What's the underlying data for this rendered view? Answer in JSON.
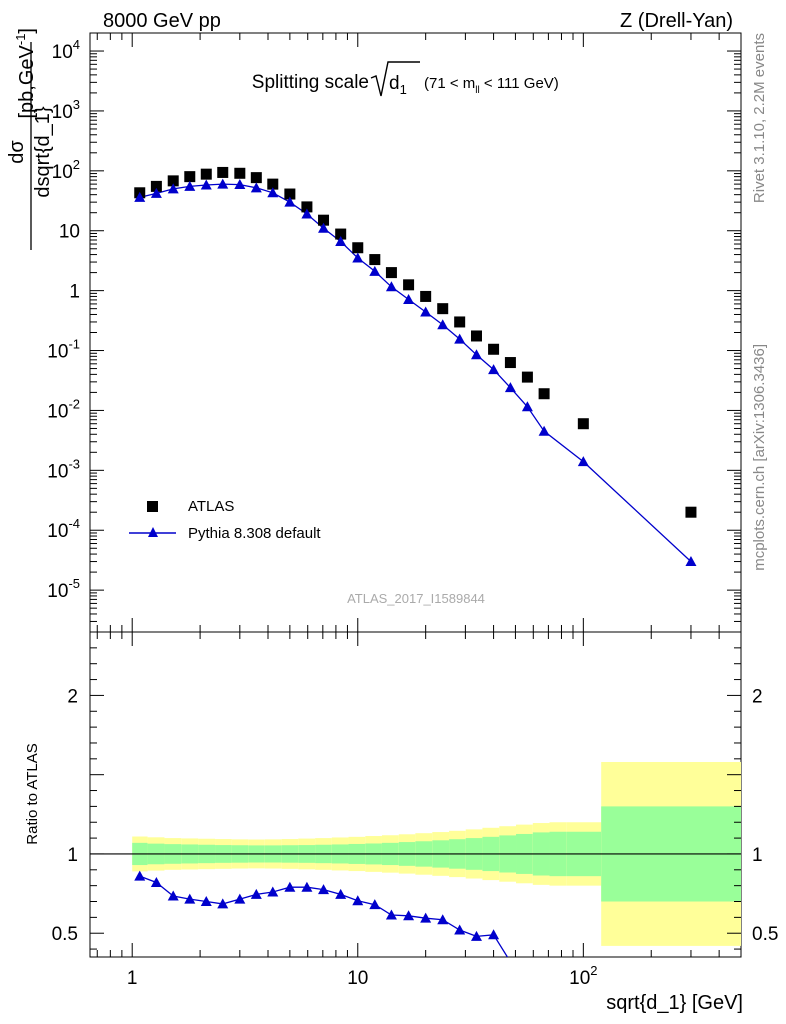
{
  "header": {
    "left": "8000 GeV pp",
    "right": "Z (Drell-Yan)"
  },
  "side_labels": {
    "rivet": "Rivet 3.1.10,  2.2M events",
    "mcplots": "mcplots.cern.ch [arXiv:1306.3436]"
  },
  "watermark": "ATLAS_2017_I1589844",
  "title": {
    "main": "Splitting scale",
    "sub": "d",
    "sub_index": "1",
    "range_a": "(71 < m",
    "range_sub": "ll",
    "range_b": " < 111 GeV)"
  },
  "colors": {
    "atlas": "#000000",
    "pythia": "#0000cc",
    "band_inner": "#99ff99",
    "band_outer": "#ffff99"
  },
  "chart_data": [
    {
      "type": "scatter",
      "panel": "main",
      "xscale": "log",
      "yscale": "log",
      "xlim": [
        0.65,
        500
      ],
      "ylim": [
        2e-06,
        20000
      ],
      "ylabel_num": "dσ",
      "ylabel_den": "dsqrt{d_1}",
      "ylabel_unit": "[pb,GeV",
      "ylabel_unit_exp": "-1",
      "ylabel_unit_close": "]",
      "yticks": [
        {
          "v": 1e-05,
          "m": "10",
          "e": "-5"
        },
        {
          "v": 0.0001,
          "m": "10",
          "e": "-4"
        },
        {
          "v": 0.001,
          "m": "10",
          "e": "-3"
        },
        {
          "v": 0.01,
          "m": "10",
          "e": "-2"
        },
        {
          "v": 0.1,
          "m": "10",
          "e": "-1"
        },
        {
          "v": 1,
          "m": "1",
          "e": ""
        },
        {
          "v": 10,
          "m": "10",
          "e": ""
        },
        {
          "v": 100,
          "m": "10",
          "e": "2"
        },
        {
          "v": 1000,
          "m": "10",
          "e": "3"
        },
        {
          "v": 10000,
          "m": "10",
          "e": "4"
        }
      ],
      "legend_position": "bottom-left",
      "series": [
        {
          "name": "ATLAS",
          "marker": "square",
          "x": [
            1.08,
            1.28,
            1.52,
            1.8,
            2.13,
            2.52,
            3.0,
            3.55,
            4.2,
            5.0,
            5.95,
            7.05,
            8.4,
            10.0,
            11.9,
            14.1,
            16.8,
            20.0,
            23.8,
            28.3,
            33.6,
            40.0,
            47.5,
            56.5,
            67.0,
            100.0,
            300.0
          ],
          "y": [
            43,
            55,
            68,
            80,
            88,
            94,
            91,
            77,
            60,
            41,
            25,
            15,
            8.8,
            5.2,
            3.3,
            2.0,
            1.25,
            0.8,
            0.5,
            0.3,
            0.175,
            0.105,
            0.063,
            0.036,
            0.019,
            0.006,
            0.0002
          ]
        },
        {
          "name": "Pythia 8.308 default",
          "marker": "triangle",
          "x": [
            1.08,
            1.28,
            1.52,
            1.8,
            2.13,
            2.52,
            3.0,
            3.55,
            4.2,
            5.0,
            5.95,
            7.05,
            8.4,
            10.0,
            11.9,
            14.1,
            16.8,
            20.0,
            23.8,
            28.3,
            33.6,
            40.0,
            47.5,
            56.5,
            67.0,
            100.0,
            300.0
          ],
          "y": [
            36,
            42,
            50,
            55,
            58,
            60,
            59,
            52,
            43,
            30,
            19,
            11,
            6.6,
            3.5,
            2.1,
            1.16,
            0.71,
            0.44,
            0.27,
            0.155,
            0.085,
            0.048,
            0.024,
            0.0115,
            0.0045,
            0.0014,
            3e-05
          ]
        }
      ]
    },
    {
      "type": "line",
      "panel": "ratio",
      "xscale": "log",
      "xlim": [
        0.65,
        500
      ],
      "ylim": [
        0.35,
        2.4
      ],
      "ylabel": "Ratio to ATLAS",
      "xlabel": "sqrt{d_1} [GeV]",
      "xticks": [
        {
          "v": 1,
          "m": "1",
          "e": ""
        },
        {
          "v": 10,
          "m": "10",
          "e": ""
        },
        {
          "v": 100,
          "m": "10",
          "e": "2"
        }
      ],
      "yticks": [
        {
          "v": 0.5,
          "label": "0.5"
        },
        {
          "v": 1,
          "label": "1"
        },
        {
          "v": 2,
          "label": "2"
        }
      ],
      "band_edges": [
        1.0,
        1.17,
        1.39,
        1.65,
        1.96,
        2.33,
        2.76,
        3.27,
        3.87,
        4.6,
        5.45,
        6.47,
        7.67,
        9.1,
        10.8,
        12.8,
        15.2,
        18.0,
        21.4,
        25.4,
        30.1,
        35.7,
        42.4,
        50.3,
        59.7,
        70.8,
        84.0,
        120.0,
        500.0
      ],
      "band_inner": [
        0.07,
        0.065,
        0.062,
        0.06,
        0.058,
        0.056,
        0.055,
        0.054,
        0.054,
        0.055,
        0.056,
        0.058,
        0.06,
        0.063,
        0.066,
        0.07,
        0.075,
        0.08,
        0.086,
        0.093,
        0.1,
        0.108,
        0.117,
        0.126,
        0.136,
        0.14,
        0.14,
        0.3
      ],
      "band_outer": [
        0.11,
        0.105,
        0.1,
        0.098,
        0.096,
        0.094,
        0.092,
        0.091,
        0.092,
        0.094,
        0.097,
        0.1,
        0.104,
        0.108,
        0.113,
        0.118,
        0.124,
        0.131,
        0.138,
        0.146,
        0.155,
        0.165,
        0.175,
        0.185,
        0.195,
        0.2,
        0.2,
        0.58
      ],
      "series": [
        {
          "name": "Pythia 8.308 default",
          "x": [
            1.08,
            1.28,
            1.52,
            1.8,
            2.13,
            2.52,
            3.0,
            3.55,
            4.2,
            5.0,
            5.95,
            7.05,
            8.4,
            10.0,
            11.9,
            14.1,
            16.8,
            20.0,
            23.8,
            28.3,
            33.6,
            40.0,
            47.5
          ],
          "y": [
            0.86,
            0.82,
            0.735,
            0.715,
            0.7,
            0.685,
            0.715,
            0.745,
            0.76,
            0.79,
            0.79,
            0.775,
            0.745,
            0.705,
            0.68,
            0.615,
            0.61,
            0.595,
            0.585,
            0.52,
            0.48,
            0.49,
            0.32
          ]
        }
      ]
    }
  ]
}
